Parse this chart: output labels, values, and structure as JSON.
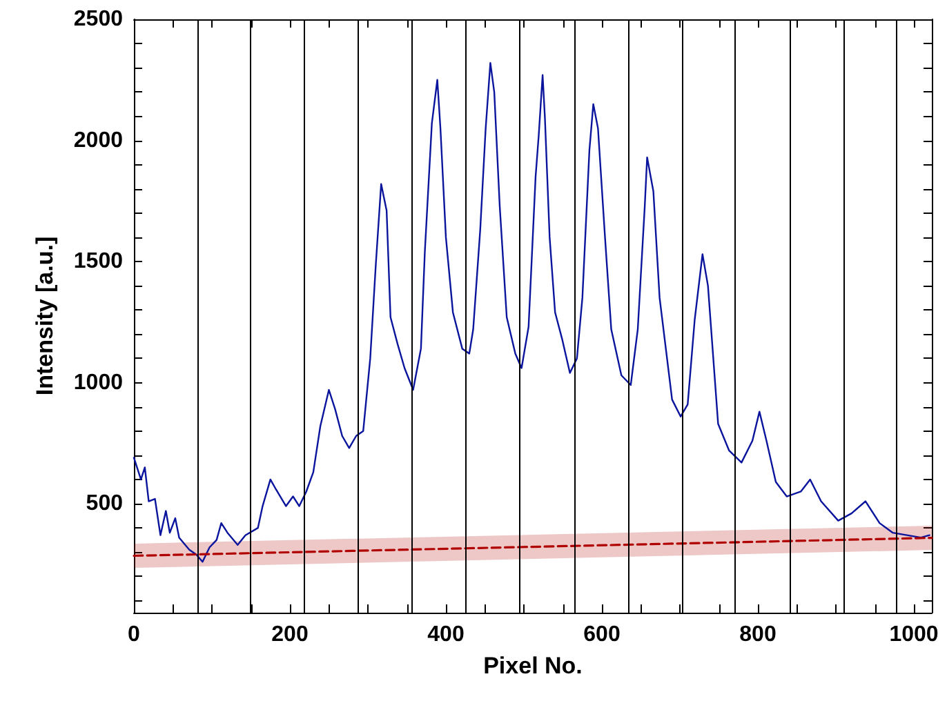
{
  "chart_data": {
    "type": "line",
    "xlabel": "Pixel No.",
    "ylabel": "Intensity [a.u.]",
    "xlim": [
      0,
      1023
    ],
    "ylim": [
      50,
      2500
    ],
    "xticks": [
      0,
      {
        "value": 50,
        "label": null
      },
      {
        "value": 100,
        "label": null
      },
      {
        "value": 150,
        "label": null
      },
      200,
      {
        "value": 250,
        "label": null
      },
      {
        "value": 300,
        "label": null
      },
      {
        "value": 350,
        "label": null
      },
      400,
      {
        "value": 450,
        "label": null
      },
      {
        "value": 500,
        "label": null
      },
      {
        "value": 550,
        "label": null
      },
      600,
      {
        "value": 650,
        "label": null
      },
      {
        "value": 700,
        "label": null
      },
      {
        "value": 750,
        "label": null
      },
      800,
      {
        "value": 850,
        "label": null
      },
      {
        "value": 900,
        "label": null
      },
      {
        "value": 950,
        "label": null
      },
      1000
    ],
    "yticks": [
      {
        "value": 100,
        "label": null
      },
      {
        "value": 200,
        "label": null
      },
      {
        "value": 300,
        "label": null
      },
      {
        "value": 400,
        "label": null
      },
      500,
      {
        "value": 600,
        "label": null
      },
      {
        "value": 700,
        "label": null
      },
      {
        "value": 800,
        "label": null
      },
      {
        "value": 900,
        "label": null
      },
      1000,
      {
        "value": 1100,
        "label": null
      },
      {
        "value": 1200,
        "label": null
      },
      {
        "value": 1300,
        "label": null
      },
      {
        "value": 1400,
        "label": null
      },
      1500,
      {
        "value": 1600,
        "label": null
      },
      {
        "value": 1700,
        "label": null
      },
      {
        "value": 1800,
        "label": null
      },
      {
        "value": 1900,
        "label": null
      },
      2000,
      {
        "value": 2100,
        "label": null
      },
      {
        "value": 2200,
        "label": null
      },
      {
        "value": 2300,
        "label": null
      },
      {
        "value": 2400,
        "label": null
      },
      2500
    ],
    "grid": false,
    "marker": "none",
    "series": [
      {
        "color": "#0a149c",
        "line_style": "solid",
        "x": [
          0,
          9,
          14,
          19,
          27,
          34,
          41,
          46,
          53,
          58,
          71,
          80,
          88,
          97,
          106,
          112,
          120,
          133,
          143,
          159,
          165,
          175,
          182,
          195,
          204,
          212,
          221,
          230,
          239,
          250,
          258,
          267,
          276,
          285,
          294,
          303,
          310,
          317,
          324,
          329,
          338,
          347,
          358,
          368,
          373,
          382,
          389,
          393,
          400,
          409,
          421,
          430,
          435,
          444,
          451,
          457,
          462,
          469,
          478,
          489,
          497,
          506,
          515,
          519,
          524,
          527,
          533,
          540,
          549,
          559,
          568,
          575,
          584,
          589,
          595,
          604,
          612,
          625,
          637,
          646,
          655,
          658,
          666,
          674,
          690,
          701,
          710,
          719,
          729,
          736,
          749,
          763,
          779,
          793,
          802,
          811,
          823,
          837,
          855,
          867,
          881,
          903,
          920,
          938,
          956,
          973,
          991,
          1009,
          1020
        ],
        "values": [
          690,
          600,
          650,
          510,
          520,
          370,
          470,
          380,
          440,
          360,
          310,
          290,
          260,
          320,
          350,
          420,
          380,
          330,
          370,
          400,
          490,
          600,
          560,
          490,
          530,
          490,
          550,
          630,
          820,
          970,
          890,
          780,
          730,
          780,
          800,
          1100,
          1480,
          1820,
          1710,
          1270,
          1160,
          1060,
          970,
          1140,
          1540,
          2070,
          2250,
          2050,
          1600,
          1290,
          1140,
          1120,
          1220,
          1630,
          2050,
          2320,
          2200,
          1730,
          1270,
          1120,
          1060,
          1230,
          1850,
          2020,
          2270,
          2090,
          1600,
          1290,
          1180,
          1040,
          1100,
          1350,
          1960,
          2150,
          2050,
          1600,
          1220,
          1030,
          990,
          1220,
          1730,
          1930,
          1790,
          1350,
          930,
          860,
          910,
          1260,
          1530,
          1400,
          830,
          720,
          670,
          760,
          880,
          760,
          590,
          530,
          550,
          600,
          510,
          430,
          460,
          510,
          420,
          380,
          370,
          360,
          370
        ]
      },
      {
        "color": "#b00000",
        "line_style": "dashed",
        "x": [
          0,
          1023
        ],
        "values": [
          285,
          359
        ],
        "lower": [
          235,
          309
        ],
        "upper": [
          335,
          409
        ]
      }
    ],
    "ref_lines": [
      {
        "axis": "x",
        "value": 81,
        "color": "#000000"
      },
      {
        "axis": "x",
        "value": 149,
        "color": "#000000"
      },
      {
        "axis": "x",
        "value": 218,
        "color": "#000000"
      },
      {
        "axis": "x",
        "value": 287,
        "color": "#000000"
      },
      {
        "axis": "x",
        "value": 356,
        "color": "#000000"
      },
      {
        "axis": "x",
        "value": 425,
        "color": "#000000"
      },
      {
        "axis": "x",
        "value": 494,
        "color": "#000000"
      },
      {
        "axis": "x",
        "value": 565,
        "color": "#000000"
      },
      {
        "axis": "x",
        "value": 634,
        "color": "#000000"
      },
      {
        "axis": "x",
        "value": 703,
        "color": "#000000"
      },
      {
        "axis": "x",
        "value": 770,
        "color": "#000000"
      },
      {
        "axis": "x",
        "value": 841,
        "color": "#000000"
      },
      {
        "axis": "x",
        "value": 910,
        "color": "#000000"
      },
      {
        "axis": "x",
        "value": 977,
        "color": "#000000"
      }
    ]
  }
}
